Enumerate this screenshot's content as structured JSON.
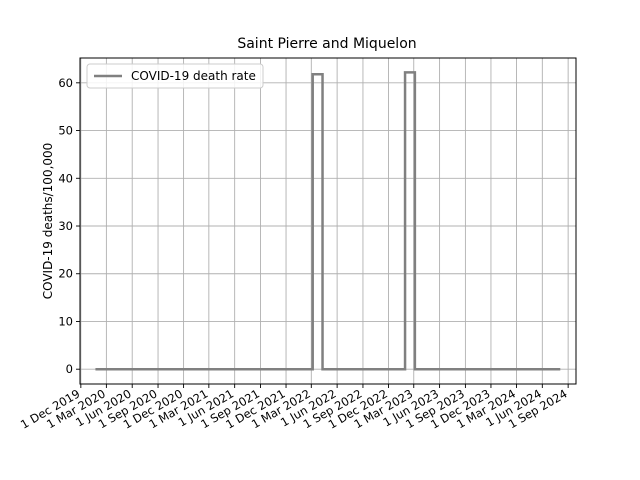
{
  "chart_data": {
    "type": "line",
    "title": "Saint Pierre and Miquelon",
    "xlabel": "",
    "ylabel": "COVID-19 deaths/100,000",
    "grid": true,
    "legend_position": "top-left",
    "series": [
      {
        "name": "COVID-19 death rate",
        "color": "#808080",
        "points": [
          {
            "x": "2020-01-22",
            "y": 0
          },
          {
            "x": "2022-03-06",
            "y": 0
          },
          {
            "x": "2022-03-06",
            "y": 61.8
          },
          {
            "x": "2022-04-10",
            "y": 61.8
          },
          {
            "x": "2022-04-10",
            "y": 0
          },
          {
            "x": "2023-01-29",
            "y": 0
          },
          {
            "x": "2023-01-29",
            "y": 62.2
          },
          {
            "x": "2023-03-05",
            "y": 62.2
          },
          {
            "x": "2023-03-05",
            "y": 0
          },
          {
            "x": "2024-08-04",
            "y": 0
          }
        ]
      }
    ],
    "xlim": [
      "2019-11-28",
      "2024-09-29"
    ],
    "ylim": [
      -3.1,
      65.2
    ],
    "x_ticks": [
      {
        "date": "2019-12-01",
        "label": "1 Dec 2019"
      },
      {
        "date": "2020-03-01",
        "label": "1 Mar 2020"
      },
      {
        "date": "2020-06-01",
        "label": "1 Jun 2020"
      },
      {
        "date": "2020-09-01",
        "label": "1 Sep 2020"
      },
      {
        "date": "2020-12-01",
        "label": "1 Dec 2020"
      },
      {
        "date": "2021-03-01",
        "label": "1 Mar 2021"
      },
      {
        "date": "2021-06-01",
        "label": "1 Jun 2021"
      },
      {
        "date": "2021-09-01",
        "label": "1 Sep 2021"
      },
      {
        "date": "2021-12-01",
        "label": "1 Dec 2021"
      },
      {
        "date": "2022-03-01",
        "label": "1 Mar 2022"
      },
      {
        "date": "2022-06-01",
        "label": "1 Jun 2022"
      },
      {
        "date": "2022-09-01",
        "label": "1 Sep 2022"
      },
      {
        "date": "2022-12-01",
        "label": "1 Dec 2022"
      },
      {
        "date": "2023-03-01",
        "label": "1 Mar 2023"
      },
      {
        "date": "2023-06-01",
        "label": "1 Jun 2023"
      },
      {
        "date": "2023-09-01",
        "label": "1 Sep 2023"
      },
      {
        "date": "2023-12-01",
        "label": "1 Dec 2023"
      },
      {
        "date": "2024-03-01",
        "label": "1 Mar 2024"
      },
      {
        "date": "2024-06-01",
        "label": "1 Jun 2024"
      },
      {
        "date": "2024-09-01",
        "label": "1 Sep 2024"
      }
    ],
    "y_ticks": [
      0,
      10,
      20,
      30,
      40,
      50,
      60
    ]
  }
}
